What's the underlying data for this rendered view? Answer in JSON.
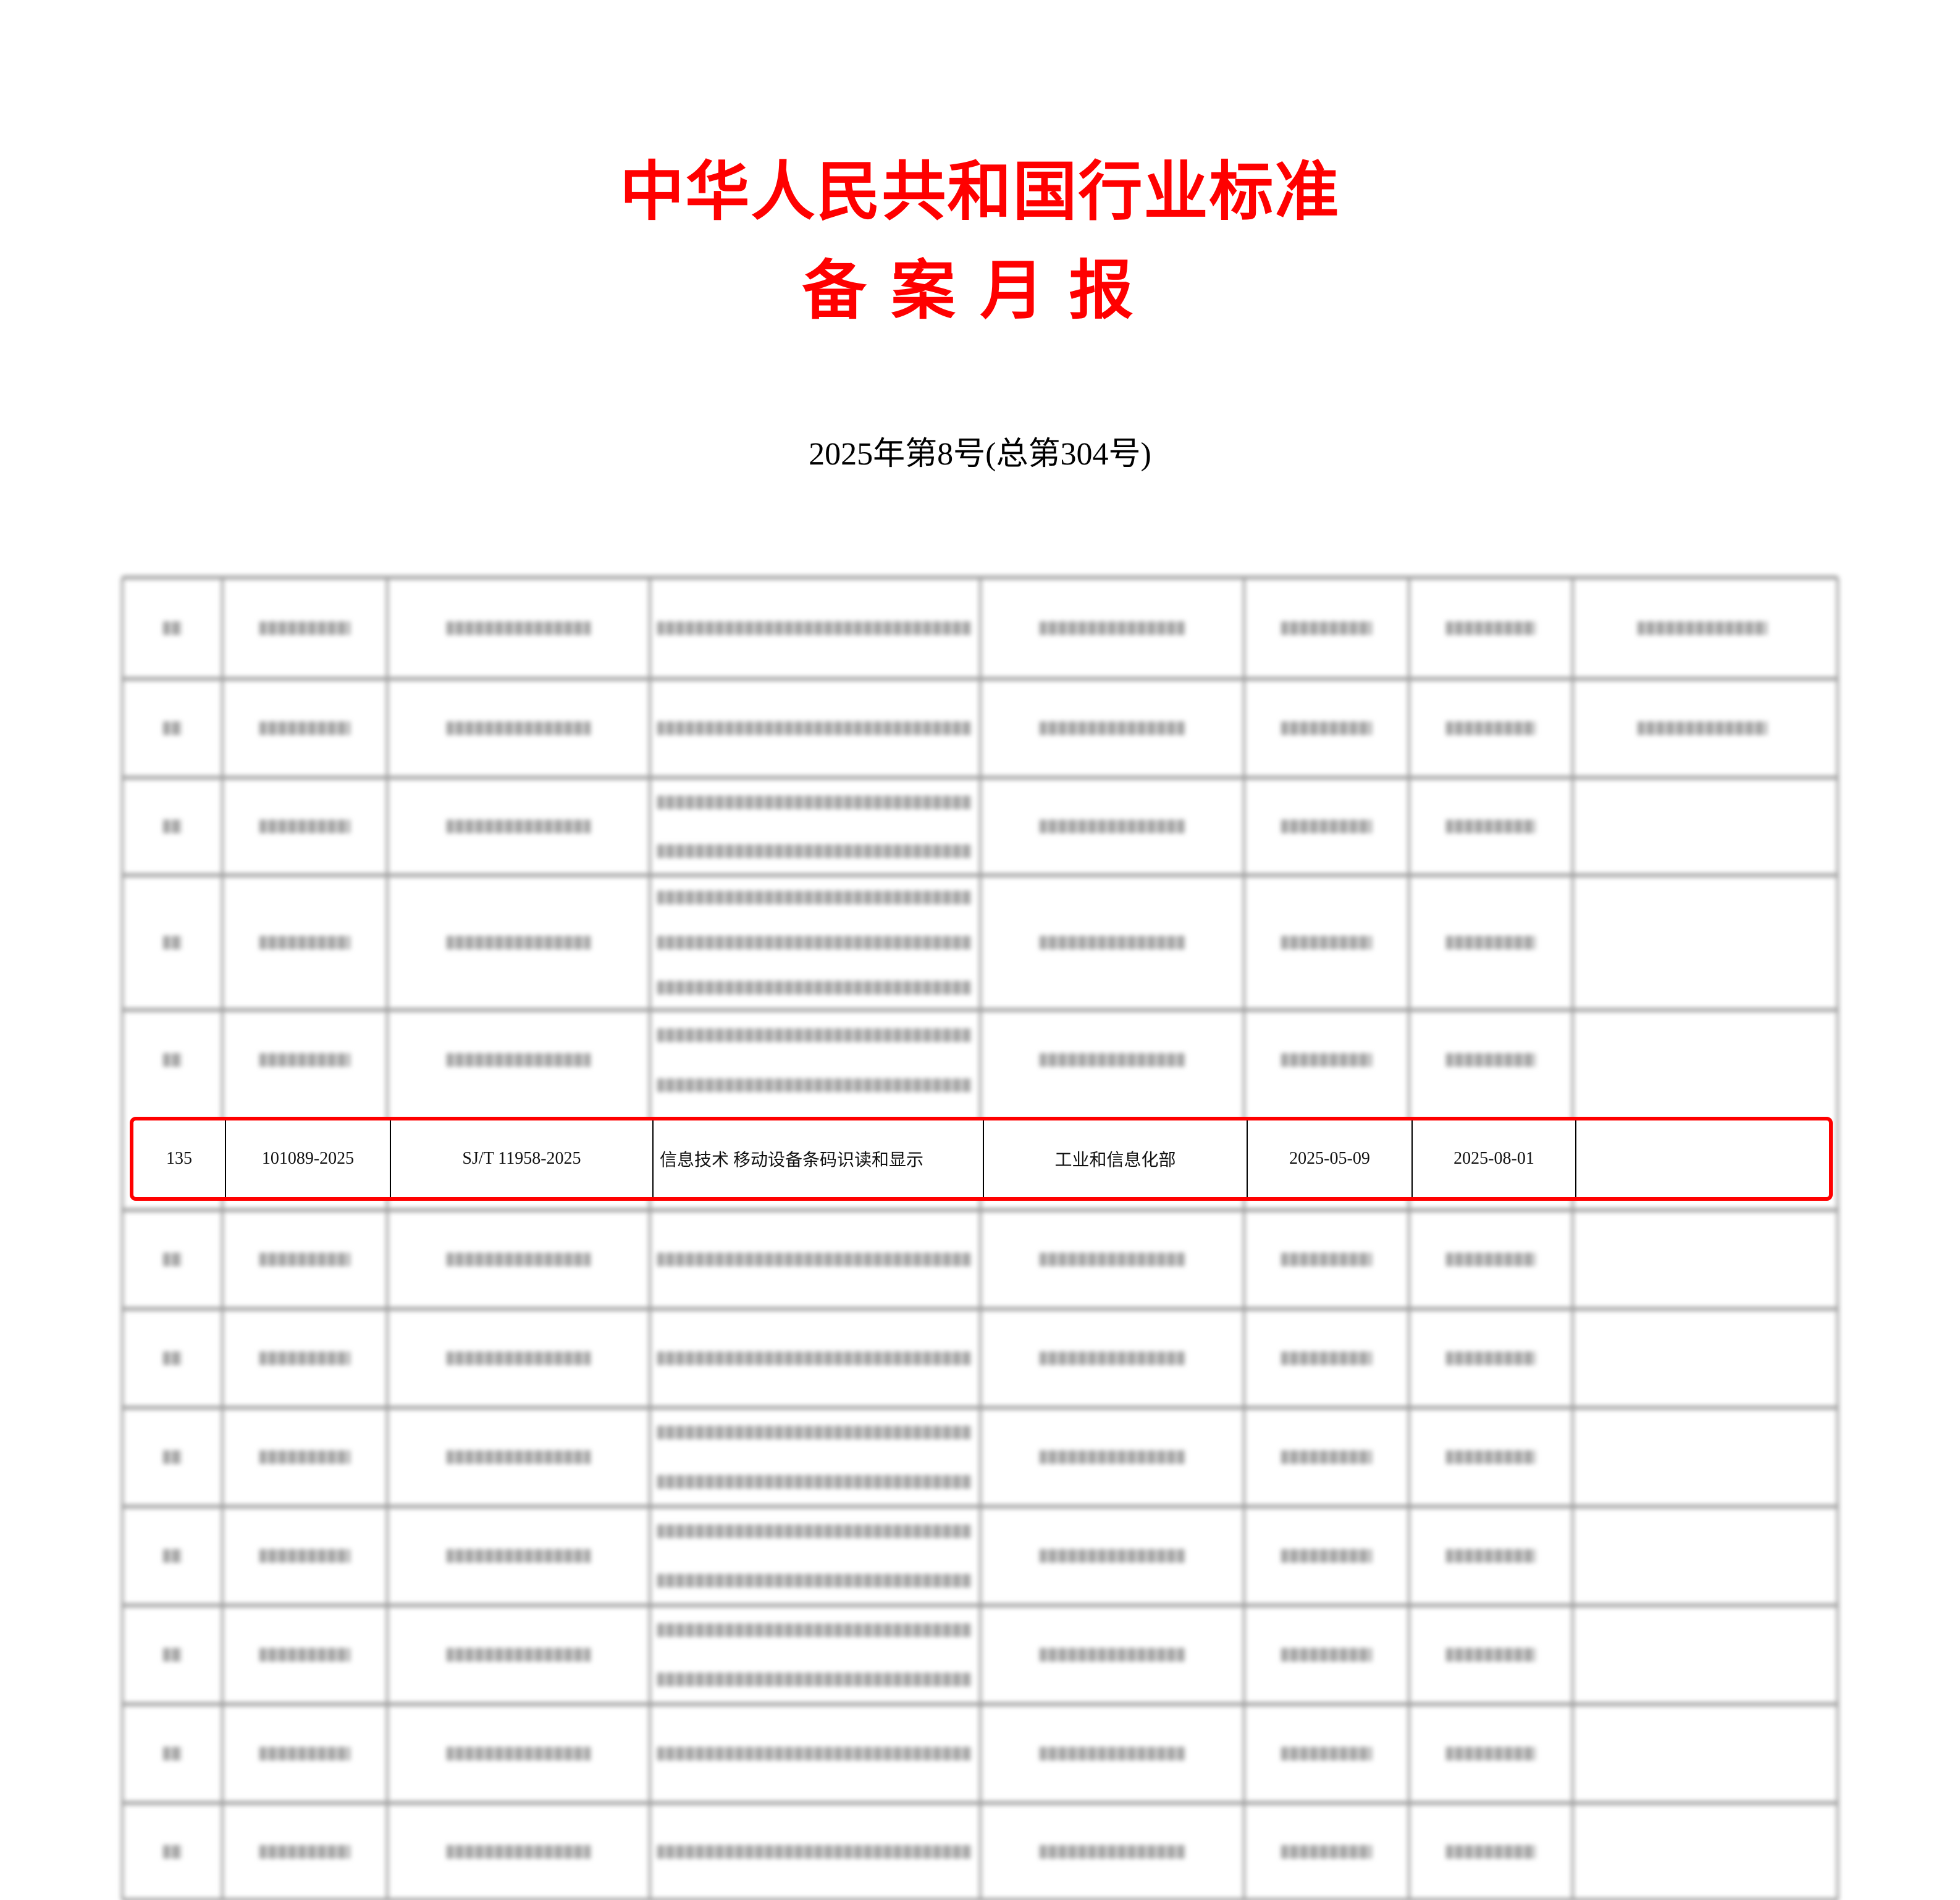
{
  "header": {
    "title_line1": "中华人民共和国行业标准",
    "title_line2": "备案月报",
    "issue": "2025年第8号(总第304号)",
    "title_color": "#ff0000"
  },
  "highlighted_row": {
    "highlight_color": "#ff0000",
    "cells": [
      "135",
      "101089-2025",
      "SJ/T 11958-2025",
      "信息技术 移动设备条码识读和显示",
      "工业和信息化部",
      "2025-05-09",
      "2025-08-01",
      ""
    ]
  }
}
